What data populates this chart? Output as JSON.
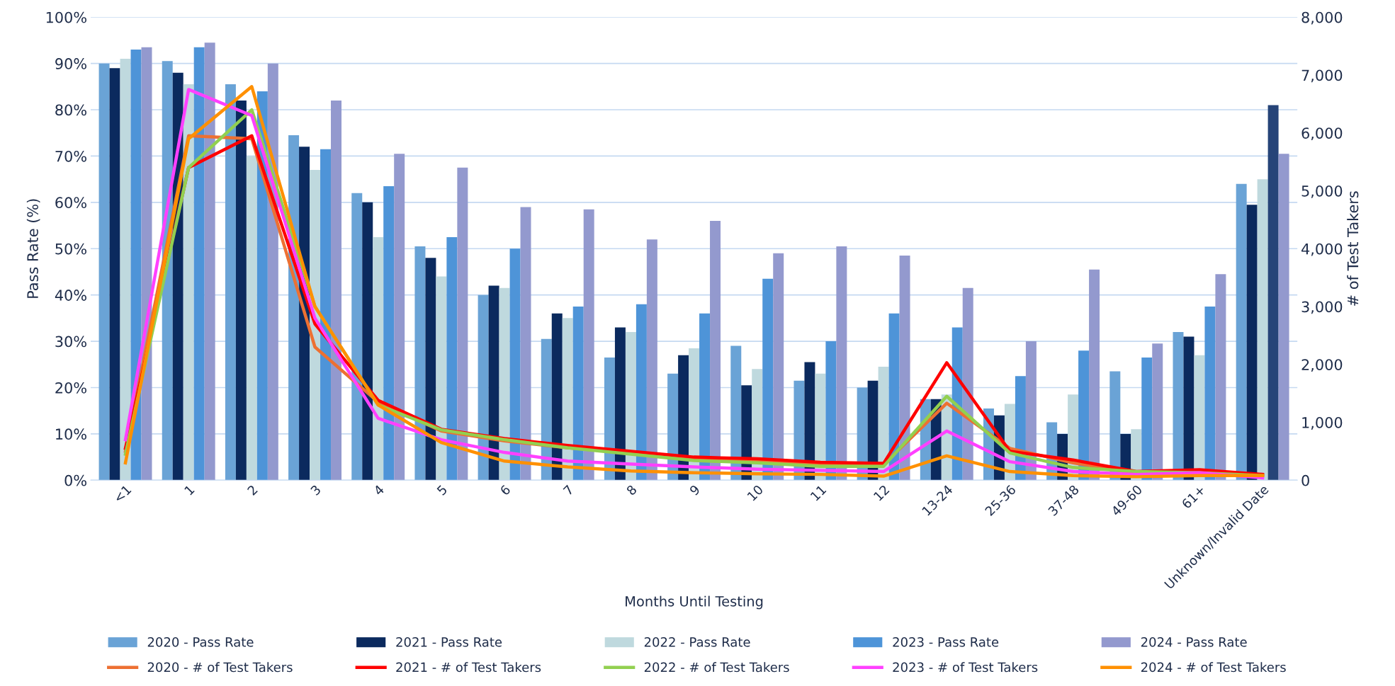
{
  "chart_data": {
    "type": "bar",
    "xlabel": "Months Until Testing",
    "ylabel": "Pass Rate (%)",
    "y2label": "# of Test Takers",
    "categories": [
      "<1",
      "1",
      "2",
      "3",
      "4",
      "5",
      "6",
      "7",
      "8",
      "9",
      "10",
      "11",
      "12",
      "13-24",
      "25-36",
      "37-48",
      "49-60",
      "61+",
      "Unknown/Invalid Date"
    ],
    "ylim": [
      0,
      100
    ],
    "yticks": [
      {
        "value": 0,
        "label": "0%"
      },
      {
        "value": 10,
        "label": "10%"
      },
      {
        "value": 20,
        "label": "20%"
      },
      {
        "value": 30,
        "label": "30%"
      },
      {
        "value": 40,
        "label": "40%"
      },
      {
        "value": 50,
        "label": "50%"
      },
      {
        "value": 60,
        "label": "60%"
      },
      {
        "value": 70,
        "label": "70%"
      },
      {
        "value": 80,
        "label": "80%"
      },
      {
        "value": 90,
        "label": "90%"
      },
      {
        "value": 100,
        "label": "100%"
      }
    ],
    "y2lim": [
      0,
      8000
    ],
    "y2ticks": [
      0,
      {
        "value": 1000,
        "label": "1,000"
      },
      {
        "value": 2000,
        "label": "2,000"
      },
      {
        "value": 3000,
        "label": "3,000"
      },
      {
        "value": 4000,
        "label": "4,000"
      },
      {
        "value": 5000,
        "label": "5,000"
      },
      {
        "value": 6000,
        "label": "6,000"
      },
      {
        "value": 7000,
        "label": "7,000"
      },
      {
        "value": 8000,
        "label": "8,000"
      }
    ],
    "grid": "y",
    "legend": "bottom",
    "series": [
      {
        "name": "2020 - Pass Rate",
        "color": "#6aa3d6",
        "values": [
          90,
          90.5,
          85.5,
          74.5,
          62,
          50.5,
          40,
          30.5,
          26.5,
          23,
          29,
          21.5,
          20,
          17.5,
          15.5,
          12.5,
          23.5,
          32,
          64
        ]
      },
      {
        "name": "2021 - Pass Rate",
        "color": "#0b2a5e",
        "values": [
          89,
          88,
          82,
          72,
          60,
          48,
          42,
          36,
          33,
          27,
          20.5,
          25.5,
          21.5,
          17.5,
          14,
          10,
          10,
          31,
          59.5
        ]
      },
      {
        "name": "2022 - Pass Rate",
        "color": "#bfd9de",
        "values": [
          91,
          85.5,
          70,
          67,
          52.5,
          44,
          41.5,
          35,
          32,
          28.5,
          24,
          23,
          24.5,
          18.5,
          16.5,
          18.5,
          11,
          27,
          65
        ]
      },
      {
        "name": "2023 - Pass Rate",
        "color": "#4e94d8",
        "colors": [
          "#4e94d8",
          "#4e94d8",
          "#4e94d8",
          "#4e94d8",
          "#4e94d8",
          "#4e94d8",
          "#4e94d8",
          "#4e94d8",
          "#4e94d8",
          "#4e94d8",
          "#4e94d8",
          "#4e94d8",
          "#4e94d8",
          "#4e94d8",
          "#4e94d8",
          "#4e94d8",
          "#4e94d8",
          "#4e94d8",
          "#264478"
        ],
        "values": [
          93,
          93.5,
          84,
          71.5,
          63.5,
          52.5,
          50,
          37.5,
          38,
          36,
          43.5,
          30,
          36,
          33,
          22.5,
          28,
          26.5,
          37.5,
          81
        ]
      },
      {
        "name": "2024 - Pass Rate",
        "color": "#9399ce",
        "values": [
          93.5,
          94.5,
          90,
          82,
          70.5,
          67.5,
          59,
          58.5,
          52,
          56,
          49,
          50.5,
          48.5,
          41.5,
          30,
          45.5,
          29.5,
          44.5,
          70.5
        ]
      },
      {
        "name": "2020 - # of Test Takers",
        "type": "line",
        "axis": "y2",
        "color": "#ed7032",
        "values": [
          500,
          5950,
          5900,
          2300,
          1350,
          850,
          680,
          560,
          470,
          380,
          330,
          280,
          270,
          1330,
          550,
          300,
          120,
          130,
          80
        ]
      },
      {
        "name": "2021 - # of Test Takers",
        "type": "line",
        "axis": "y2",
        "color": "#ff0000",
        "values": [
          550,
          5400,
          5950,
          2700,
          1380,
          880,
          720,
          600,
          500,
          400,
          370,
          310,
          290,
          2030,
          500,
          350,
          150,
          180,
          100
        ]
      },
      {
        "name": "2022 - # of Test Takers",
        "type": "line",
        "axis": "y2",
        "color": "#92d050",
        "values": [
          450,
          5400,
          6400,
          3000,
          1300,
          870,
          700,
          560,
          450,
          340,
          300,
          240,
          240,
          1450,
          470,
          220,
          150,
          130,
          80
        ]
      },
      {
        "name": "2023 - # of Test Takers",
        "type": "line",
        "axis": "y2",
        "color": "#ff40ff",
        "values": [
          700,
          6750,
          6300,
          2800,
          1070,
          700,
          480,
          330,
          280,
          230,
          190,
          170,
          150,
          850,
          320,
          150,
          100,
          130,
          40
        ]
      },
      {
        "name": "2024 - # of Test Takers",
        "type": "line",
        "axis": "y2",
        "color": "#ff9000",
        "values": [
          300,
          5900,
          6800,
          3000,
          1300,
          650,
          330,
          230,
          160,
          130,
          110,
          100,
          70,
          420,
          150,
          80,
          60,
          80,
          80
        ]
      }
    ]
  }
}
